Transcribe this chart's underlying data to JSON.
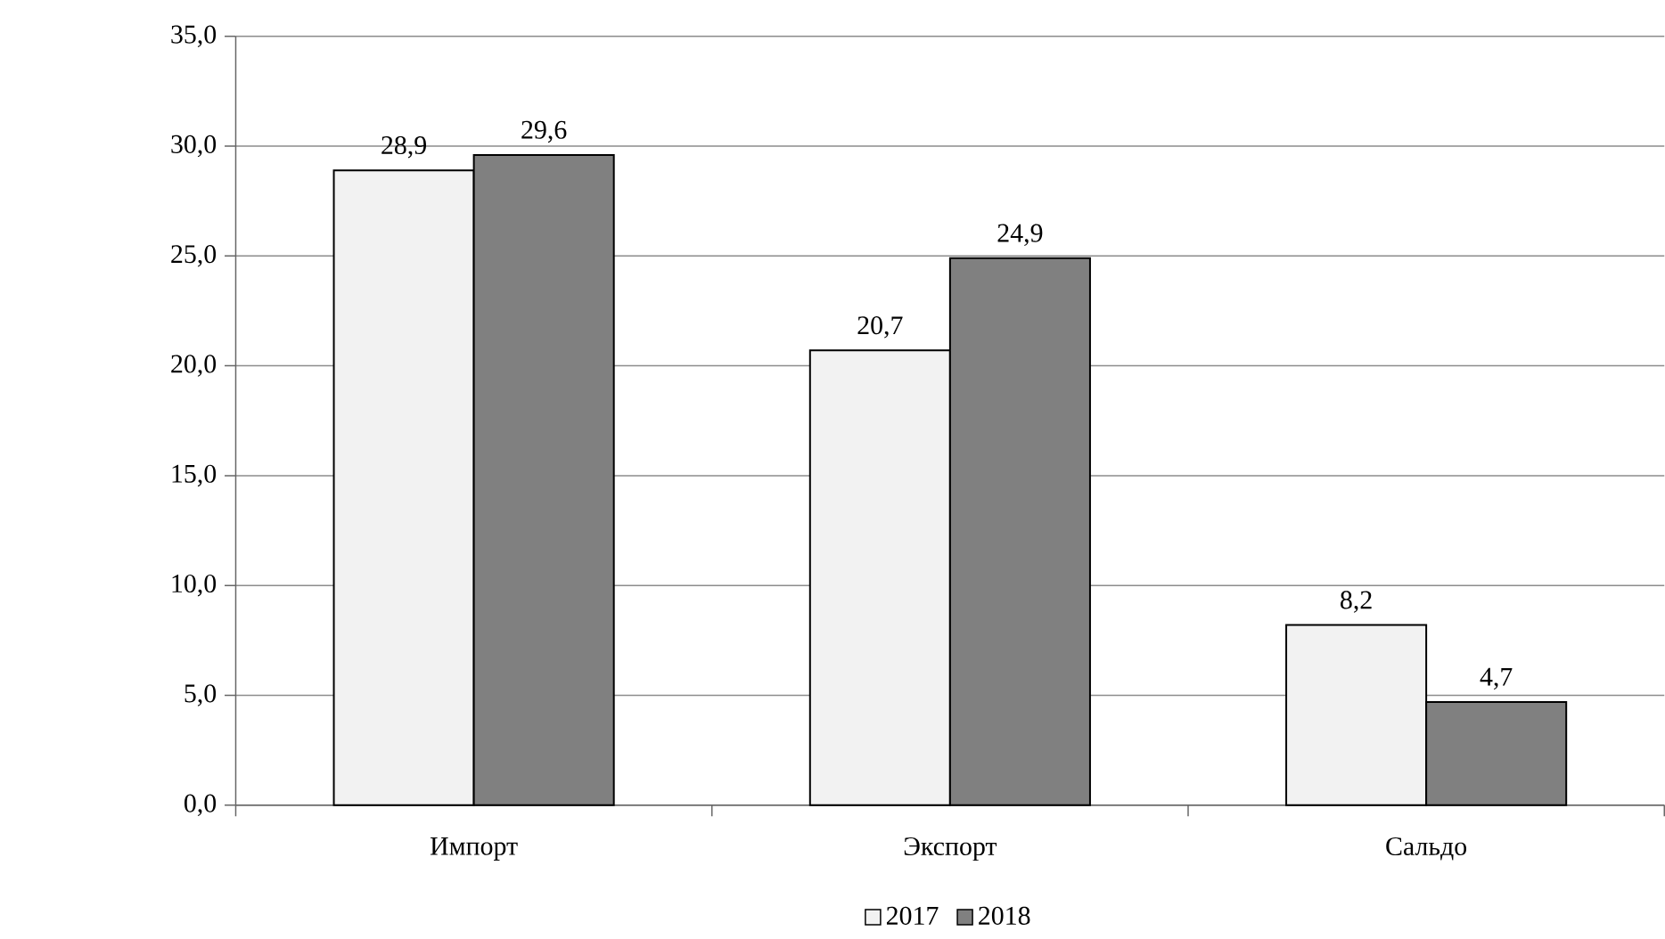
{
  "chart_data": {
    "type": "bar",
    "categories": [
      "Импорт",
      "Экспорт",
      "Сальдо"
    ],
    "series": [
      {
        "name": "2017",
        "color": "#f2f2f2",
        "values": [
          28.9,
          20.7,
          8.2
        ],
        "value_labels": [
          "28,9",
          "20,7",
          "8,2"
        ]
      },
      {
        "name": "2018",
        "color": "#808080",
        "values": [
          29.6,
          24.9,
          4.7
        ],
        "value_labels": [
          "29,6",
          "24,9",
          "4,7"
        ]
      }
    ],
    "ylim": [
      0,
      35
    ],
    "yticks": [
      {
        "value": 0,
        "label": "0,0"
      },
      {
        "value": 5,
        "label": "5,0"
      },
      {
        "value": 10,
        "label": "10,0"
      },
      {
        "value": 15,
        "label": "15,0"
      },
      {
        "value": 20,
        "label": "20,0"
      },
      {
        "value": 25,
        "label": "25,0"
      },
      {
        "value": 30,
        "label": "30,0"
      },
      {
        "value": 35,
        "label": "35,0"
      }
    ],
    "grid": "y",
    "legend": "bottom"
  }
}
